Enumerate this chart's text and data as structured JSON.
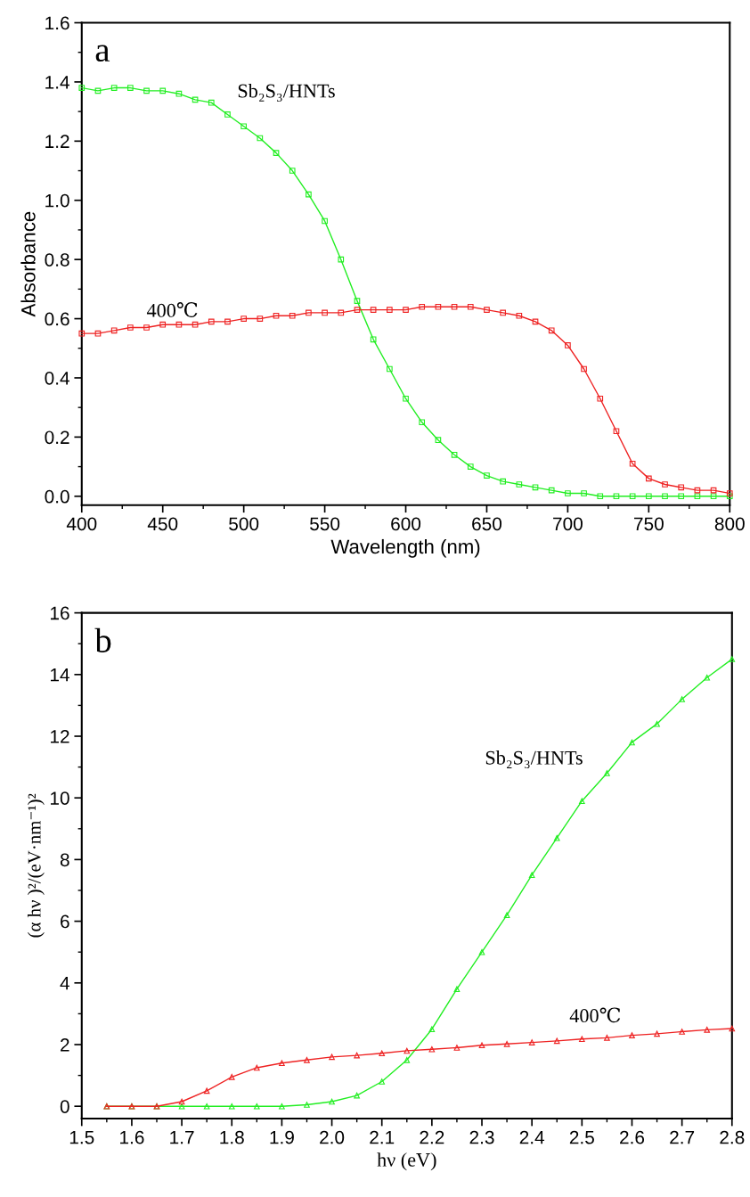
{
  "chart_data": [
    {
      "type": "line",
      "xlabel": "Wavelength (nm)",
      "ylabel": "Absorbance",
      "annotations": [
        "a"
      ],
      "xlim": [
        400,
        800
      ],
      "ylim": [
        -0.03,
        1.6
      ],
      "xticks": [
        400,
        450,
        500,
        550,
        600,
        650,
        700,
        750,
        800
      ],
      "yticks": [
        {
          "value": 0,
          "label": "0.0"
        },
        {
          "value": 0.2,
          "label": "0.2"
        },
        {
          "value": 0.4,
          "label": "0.4"
        },
        {
          "value": 0.6,
          "label": "0.6"
        },
        {
          "value": 0.8,
          "label": "0.8"
        },
        {
          "value": 1,
          "label": "1.0"
        },
        {
          "value": 1.2,
          "label": "1.2"
        },
        {
          "value": 1.4,
          "label": "1.4"
        },
        {
          "value": 1.6,
          "label": "1.6"
        }
      ],
      "marker": "square",
      "line_style": "solid",
      "grid": false,
      "legend": false,
      "x": [
        400,
        410,
        420,
        430,
        440,
        450,
        460,
        470,
        480,
        490,
        500,
        510,
        520,
        530,
        540,
        550,
        560,
        570,
        580,
        590,
        600,
        610,
        620,
        630,
        640,
        650,
        660,
        670,
        680,
        690,
        700,
        710,
        720,
        730,
        740,
        750,
        760,
        770,
        780,
        790,
        800
      ],
      "series": [
        {
          "name": "Sb₂S₃/HNTs",
          "color": "#22ee22",
          "values": [
            1.38,
            1.37,
            1.38,
            1.38,
            1.37,
            1.37,
            1.36,
            1.34,
            1.33,
            1.29,
            1.25,
            1.21,
            1.16,
            1.1,
            1.02,
            0.93,
            0.8,
            0.66,
            0.53,
            0.43,
            0.33,
            0.25,
            0.19,
            0.14,
            0.1,
            0.07,
            0.05,
            0.04,
            0.03,
            0.02,
            0.01,
            0.01,
            0,
            0,
            0,
            0,
            0,
            0,
            0,
            0,
            0
          ]
        },
        {
          "name": "400℃",
          "color": "#ee2222",
          "values": [
            0.55,
            0.55,
            0.56,
            0.57,
            0.57,
            0.58,
            0.58,
            0.58,
            0.59,
            0.59,
            0.6,
            0.6,
            0.61,
            0.61,
            0.62,
            0.62,
            0.62,
            0.63,
            0.63,
            0.63,
            0.63,
            0.64,
            0.64,
            0.64,
            0.64,
            0.63,
            0.62,
            0.61,
            0.59,
            0.56,
            0.51,
            0.43,
            0.33,
            0.22,
            0.11,
            0.06,
            0.04,
            0.03,
            0.02,
            0.02,
            0.01
          ]
        }
      ]
    },
    {
      "type": "line",
      "xlabel": "hν (eV)",
      "ylabel": "(α hν )²/(eV·nm⁻¹)²",
      "annotations": [
        "b"
      ],
      "xlim": [
        1.5,
        2.8
      ],
      "ylim": [
        -0.4,
        16
      ],
      "xticks": [
        {
          "value": 1.5,
          "label": "1.5"
        },
        {
          "value": 1.6,
          "label": "1.6"
        },
        {
          "value": 1.7,
          "label": "1.7"
        },
        {
          "value": 1.8,
          "label": "1.8"
        },
        {
          "value": 1.9,
          "label": "1.9"
        },
        {
          "value": 2,
          "label": "2.0"
        },
        {
          "value": 2.1,
          "label": "2.1"
        },
        {
          "value": 2.2,
          "label": "2.2"
        },
        {
          "value": 2.3,
          "label": "2.3"
        },
        {
          "value": 2.4,
          "label": "2.4"
        },
        {
          "value": 2.5,
          "label": "2.5"
        },
        {
          "value": 2.6,
          "label": "2.6"
        },
        {
          "value": 2.7,
          "label": "2.7"
        },
        {
          "value": 2.8,
          "label": "2.8"
        }
      ],
      "yticks": [
        0,
        2,
        4,
        6,
        8,
        10,
        12,
        14,
        16
      ],
      "marker": "triangle",
      "line_style": "solid",
      "grid": false,
      "legend": false,
      "x": [
        1.55,
        1.6,
        1.65,
        1.7,
        1.75,
        1.8,
        1.85,
        1.9,
        1.95,
        2.0,
        2.05,
        2.1,
        2.15,
        2.2,
        2.25,
        2.3,
        2.35,
        2.4,
        2.45,
        2.5,
        2.55,
        2.6,
        2.65,
        2.7,
        2.75,
        2.8
      ],
      "series": [
        {
          "name": "Sb₂S₃/HNTs",
          "color": "#22ee22",
          "values": [
            0,
            0,
            0,
            0,
            0,
            0,
            0,
            0,
            0.05,
            0.15,
            0.35,
            0.8,
            1.5,
            2.5,
            3.8,
            5.0,
            6.2,
            7.5,
            8.7,
            9.9,
            10.8,
            11.8,
            12.4,
            13.2,
            13.9,
            14.5
          ]
        },
        {
          "name": "400℃",
          "color": "#ee2222",
          "values": [
            0,
            0,
            0,
            0.15,
            0.5,
            0.95,
            1.25,
            1.4,
            1.5,
            1.6,
            1.65,
            1.72,
            1.8,
            1.85,
            1.9,
            1.98,
            2.02,
            2.07,
            2.12,
            2.18,
            2.22,
            2.3,
            2.35,
            2.42,
            2.48,
            2.52
          ]
        }
      ]
    }
  ]
}
